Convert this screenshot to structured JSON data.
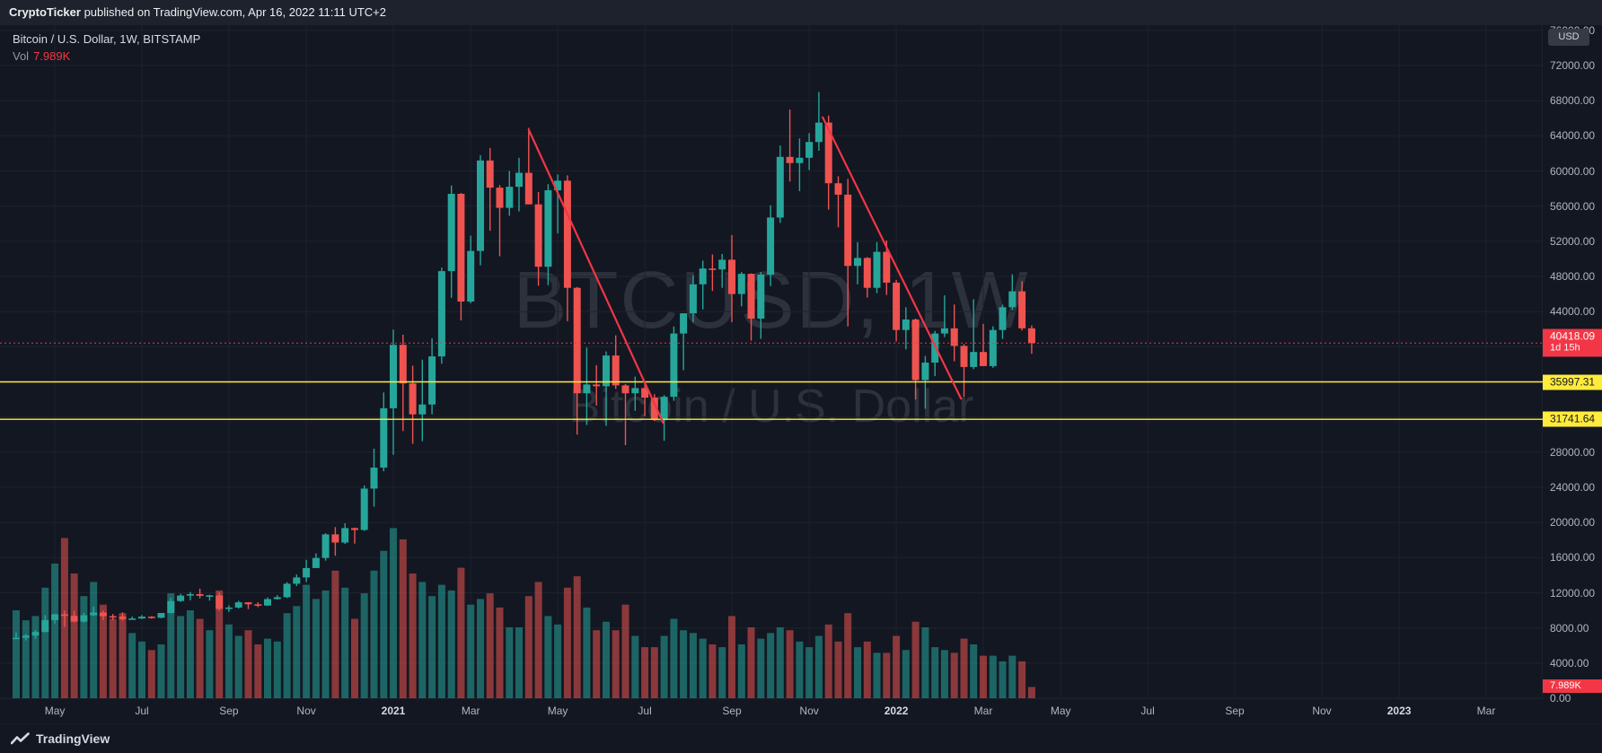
{
  "attribution": {
    "author": "CryptoTicker",
    "text": " published on TradingView.com, Apr 16, 2022 11:11 UTC+2"
  },
  "legend": {
    "symbol": "Bitcoin / U.S. Dollar",
    "interval": "1W",
    "exchange": "BITSTAMP",
    "title_text": "Bitcoin / U.S. Dollar, 1W, BITSTAMP",
    "vol_label": "Vol",
    "vol_value": "7.989K"
  },
  "watermark": {
    "line1": "BTCUSD, 1W",
    "line2": "Bitcoin / U.S. Dollar"
  },
  "price_scale": {
    "unit_label": "USD",
    "ticks": [
      {
        "label": "76000.00",
        "value": 76000
      },
      {
        "label": "72000.00",
        "value": 72000
      },
      {
        "label": "68000.00",
        "value": 68000
      },
      {
        "label": "64000.00",
        "value": 64000
      },
      {
        "label": "60000.00",
        "value": 60000
      },
      {
        "label": "56000.00",
        "value": 56000
      },
      {
        "label": "52000.00",
        "value": 52000
      },
      {
        "label": "48000.00",
        "value": 48000
      },
      {
        "label": "44000.00",
        "value": 44000
      },
      {
        "label": "40000.00",
        "value": 40000
      },
      {
        "label": "36000.00",
        "value": 36000
      },
      {
        "label": "32000.00",
        "value": 32000
      },
      {
        "label": "28000.00",
        "value": 28000
      },
      {
        "label": "24000.00",
        "value": 24000
      },
      {
        "label": "20000.00",
        "value": 20000
      },
      {
        "label": "16000.00",
        "value": 16000
      },
      {
        "label": "12000.00",
        "value": 12000
      },
      {
        "label": "8000.00",
        "value": 8000
      },
      {
        "label": "4000.00",
        "value": 4000
      },
      {
        "label": "0.00",
        "value": 0
      }
    ]
  },
  "time_scale": {
    "ticks": [
      {
        "label": "May",
        "week": 4,
        "year": false
      },
      {
        "label": "Jul",
        "week": 13,
        "year": false
      },
      {
        "label": "Sep",
        "week": 22,
        "year": false
      },
      {
        "label": "Nov",
        "week": 30,
        "year": false
      },
      {
        "label": "2021",
        "week": 39,
        "year": true
      },
      {
        "label": "Mar",
        "week": 47,
        "year": false
      },
      {
        "label": "May",
        "week": 56,
        "year": false
      },
      {
        "label": "Jul",
        "week": 65,
        "year": false
      },
      {
        "label": "Sep",
        "week": 74,
        "year": false
      },
      {
        "label": "Nov",
        "week": 82,
        "year": false
      },
      {
        "label": "2022",
        "week": 91,
        "year": true
      },
      {
        "label": "Mar",
        "week": 100,
        "year": false
      },
      {
        "label": "May",
        "week": 108,
        "year": false
      },
      {
        "label": "Jul",
        "week": 117,
        "year": false
      },
      {
        "label": "Sep",
        "week": 126,
        "year": false
      },
      {
        "label": "Nov",
        "week": 135,
        "year": false
      },
      {
        "label": "2023",
        "week": 143,
        "year": true
      },
      {
        "label": "Mar",
        "week": 152,
        "year": false
      }
    ]
  },
  "badges": {
    "current_price": {
      "label": "40418.09",
      "countdown": "1d 15h"
    },
    "levels": [
      {
        "label": "35997.31"
      },
      {
        "label": "31741.64"
      }
    ],
    "volume": {
      "label": "7.989K"
    }
  },
  "footer": {
    "brand": "TradingView"
  },
  "chart_data": {
    "type": "candlestick",
    "symbol": "BTCUSD",
    "name": "Bitcoin / U.S. Dollar",
    "exchange": "BITSTAMP",
    "interval": "1W",
    "currency": "USD",
    "current_price": 40418.09,
    "bar_countdown": "1d 15h",
    "current_volume_k": 7.989,
    "price_axis": {
      "min": 0,
      "max": 76600,
      "tick_step": 4000
    },
    "time_axis": {
      "first_bar": "2020-04-06",
      "last_bar": "2022-04-11",
      "visible_end": "2023-03-06",
      "bar_interval": "1 week"
    },
    "colors": {
      "up": "#26a69a",
      "down": "#ef5350",
      "background": "#131722",
      "grid": "#1e222d",
      "axis_text": "#b2b5be",
      "level_line": "#ffeb3b",
      "current_line": "#f23645",
      "trendline": "#f23645"
    },
    "current_price_line": {
      "price": 40418.09,
      "color": "#f23645",
      "style": "dotted"
    },
    "horizontal_levels": [
      {
        "price": 35997.31,
        "color": "#ffeb3b"
      },
      {
        "price": 31741.64,
        "color": "#ffeb3b"
      }
    ],
    "trendlines": [
      {
        "from_week": 53,
        "from_price": 64700,
        "to_week": 66.9,
        "to_price": 31350,
        "color": "#f23645"
      },
      {
        "from_week": 83.4,
        "from_price": 66100,
        "to_week": 97.7,
        "to_price": 34100,
        "color": "#f23645"
      }
    ],
    "candles": {
      "columns": [
        "week_start",
        "open",
        "high",
        "low",
        "close",
        "volume_k"
      ],
      "rows": [
        [
          "2020-04-06",
          6800,
          7480,
          6750,
          6880,
          62
        ],
        [
          "2020-04-13",
          6880,
          7300,
          6580,
          7130,
          55
        ],
        [
          "2020-04-20",
          7130,
          7775,
          6770,
          7550,
          58
        ],
        [
          "2020-04-27",
          7550,
          9460,
          7500,
          8900,
          78
        ],
        [
          "2020-05-04",
          8900,
          9585,
          8520,
          9550,
          95
        ],
        [
          "2020-05-11",
          9550,
          9960,
          8115,
          9380,
          113
        ],
        [
          "2020-05-18",
          9380,
          9950,
          8640,
          8720,
          88
        ],
        [
          "2020-05-25",
          8720,
          9700,
          8630,
          9450,
          72
        ],
        [
          "2020-06-01",
          9450,
          10430,
          9330,
          9750,
          82
        ],
        [
          "2020-06-08",
          9750,
          9990,
          8900,
          9340,
          66
        ],
        [
          "2020-06-15",
          9340,
          9590,
          8910,
          9300,
          56
        ],
        [
          "2020-06-22",
          9300,
          9780,
          8830,
          9010,
          60
        ],
        [
          "2020-06-29",
          9010,
          9290,
          8930,
          9080,
          46
        ],
        [
          "2020-07-06",
          9080,
          9470,
          9020,
          9280,
          40
        ],
        [
          "2020-07-13",
          9280,
          9340,
          9050,
          9160,
          34
        ],
        [
          "2020-07-20",
          9160,
          9700,
          9100,
          9700,
          38
        ],
        [
          "2020-07-27",
          9700,
          11420,
          9660,
          11060,
          74
        ],
        [
          "2020-08-03",
          11060,
          11900,
          10960,
          11680,
          58
        ],
        [
          "2020-08-10",
          11680,
          12090,
          11150,
          11850,
          62
        ],
        [
          "2020-08-17",
          11850,
          12470,
          11380,
          11650,
          56
        ],
        [
          "2020-08-24",
          11650,
          11780,
          11110,
          11700,
          48
        ],
        [
          "2020-08-31",
          11700,
          12050,
          9960,
          10170,
          76
        ],
        [
          "2020-09-07",
          10170,
          10580,
          9820,
          10330,
          52
        ],
        [
          "2020-09-14",
          10330,
          11090,
          10200,
          10920,
          44
        ],
        [
          "2020-09-21",
          10920,
          10950,
          10140,
          10690,
          48
        ],
        [
          "2020-09-28",
          10690,
          10930,
          10370,
          10550,
          38
        ],
        [
          "2020-10-05",
          10550,
          11480,
          10510,
          11290,
          42
        ],
        [
          "2020-10-12",
          11290,
          11730,
          11220,
          11500,
          40
        ],
        [
          "2020-10-19",
          11500,
          13220,
          11400,
          13030,
          60
        ],
        [
          "2020-10-26",
          13030,
          14080,
          12770,
          13750,
          65
        ],
        [
          "2020-11-02",
          13750,
          15750,
          13220,
          14820,
          80
        ],
        [
          "2020-11-09",
          14820,
          16480,
          14810,
          15960,
          70
        ],
        [
          "2020-11-16",
          15960,
          18770,
          15660,
          18650,
          76
        ],
        [
          "2020-11-23",
          18650,
          19480,
          16220,
          17720,
          90
        ],
        [
          "2020-11-30",
          17720,
          19900,
          17570,
          19360,
          78
        ],
        [
          "2020-12-07",
          19360,
          19420,
          17600,
          19150,
          56
        ],
        [
          "2020-12-14",
          19150,
          24200,
          19050,
          23860,
          74
        ],
        [
          "2020-12-21",
          23860,
          28400,
          21800,
          26250,
          90
        ],
        [
          "2020-12-28",
          26250,
          34800,
          25830,
          33000,
          104
        ],
        [
          "2021-01-04",
          33000,
          41950,
          27700,
          40220,
          120
        ],
        [
          "2021-01-11",
          40220,
          41370,
          30400,
          35830,
          112
        ],
        [
          "2021-01-18",
          35830,
          37850,
          28950,
          32300,
          88
        ],
        [
          "2021-01-25",
          32300,
          38530,
          29250,
          33430,
          82
        ],
        [
          "2021-02-01",
          33430,
          40950,
          32300,
          38900,
          72
        ],
        [
          "2021-02-08",
          38900,
          49000,
          38060,
          48600,
          80
        ],
        [
          "2021-02-15",
          48600,
          58350,
          45570,
          57400,
          76
        ],
        [
          "2021-02-22",
          57400,
          57500,
          43000,
          45140,
          92
        ],
        [
          "2021-03-01",
          45140,
          52640,
          44950,
          50900,
          66
        ],
        [
          "2021-03-08",
          50900,
          61800,
          49270,
          61200,
          70
        ],
        [
          "2021-03-15",
          61200,
          62600,
          53200,
          58100,
          74
        ],
        [
          "2021-03-22",
          58100,
          58400,
          50300,
          55800,
          64
        ],
        [
          "2021-03-29",
          55800,
          60000,
          54900,
          58200,
          50
        ],
        [
          "2021-04-05",
          58200,
          61500,
          55400,
          59800,
          50
        ],
        [
          "2021-04-12",
          59800,
          64900,
          59600,
          56200,
          72
        ],
        [
          "2021-04-19",
          56200,
          57600,
          46950,
          49100,
          82
        ],
        [
          "2021-04-26",
          49100,
          58500,
          47000,
          57800,
          58
        ],
        [
          "2021-05-03",
          57800,
          59600,
          52900,
          58900,
          52
        ],
        [
          "2021-05-10",
          58900,
          59500,
          42900,
          46700,
          78
        ],
        [
          "2021-05-17",
          46700,
          46800,
          30000,
          34700,
          86
        ],
        [
          "2021-05-24",
          34700,
          39900,
          31100,
          35700,
          64
        ],
        [
          "2021-05-31",
          35700,
          37900,
          33300,
          35500,
          48
        ],
        [
          "2021-06-07",
          35500,
          39470,
          31000,
          39000,
          54
        ],
        [
          "2021-06-14",
          39000,
          41300,
          35200,
          35600,
          48
        ],
        [
          "2021-06-21",
          35600,
          35750,
          28800,
          34700,
          66
        ],
        [
          "2021-06-28",
          34700,
          36600,
          32700,
          35300,
          44
        ],
        [
          "2021-07-05",
          35300,
          35950,
          32100,
          34200,
          36
        ],
        [
          "2021-07-12",
          34200,
          34600,
          31550,
          31800,
          36
        ],
        [
          "2021-07-19",
          31800,
          34500,
          29300,
          34300,
          44
        ],
        [
          "2021-07-26",
          34300,
          42300,
          33850,
          41500,
          56
        ],
        [
          "2021-08-02",
          41500,
          43800,
          37330,
          43800,
          48
        ],
        [
          "2021-08-09",
          43800,
          48150,
          42780,
          47100,
          46
        ],
        [
          "2021-08-16",
          47100,
          49800,
          44250,
          48900,
          42
        ],
        [
          "2021-08-23",
          48900,
          50500,
          46350,
          48800,
          38
        ],
        [
          "2021-08-30",
          48800,
          50550,
          46700,
          49900,
          36
        ],
        [
          "2021-09-06",
          49900,
          52700,
          42800,
          46000,
          58
        ],
        [
          "2021-09-13",
          46000,
          48500,
          44600,
          48300,
          38
        ],
        [
          "2021-09-20",
          48300,
          48350,
          40700,
          43200,
          50
        ],
        [
          "2021-09-27",
          43200,
          48500,
          40900,
          48200,
          42
        ],
        [
          "2021-10-04",
          48200,
          56100,
          46900,
          54700,
          46
        ],
        [
          "2021-10-11",
          54700,
          62900,
          54100,
          61600,
          50
        ],
        [
          "2021-10-18",
          61600,
          67000,
          58800,
          60900,
          48
        ],
        [
          "2021-10-25",
          60900,
          63700,
          57700,
          61500,
          40
        ],
        [
          "2021-11-01",
          61500,
          64300,
          60100,
          63300,
          36
        ],
        [
          "2021-11-08",
          63300,
          69000,
          62300,
          65500,
          44
        ],
        [
          "2021-11-15",
          65500,
          66300,
          55600,
          58600,
          52
        ],
        [
          "2021-11-22",
          58600,
          59400,
          53600,
          57300,
          40
        ],
        [
          "2021-11-29",
          57300,
          59100,
          42300,
          49200,
          60
        ],
        [
          "2021-12-06",
          49200,
          51900,
          47100,
          50100,
          36
        ],
        [
          "2021-12-13",
          50100,
          50200,
          45600,
          46700,
          40
        ],
        [
          "2021-12-20",
          46700,
          51900,
          46100,
          50800,
          32
        ],
        [
          "2021-12-27",
          50800,
          52100,
          45900,
          47300,
          32
        ],
        [
          "2022-01-03",
          47300,
          47600,
          40600,
          41900,
          44
        ],
        [
          "2022-01-10",
          41900,
          44500,
          39700,
          43100,
          34
        ],
        [
          "2022-01-17",
          43100,
          43200,
          34000,
          36200,
          54
        ],
        [
          "2022-01-24",
          36200,
          38950,
          32950,
          38200,
          50
        ],
        [
          "2022-01-31",
          38200,
          41800,
          36650,
          41500,
          36
        ],
        [
          "2022-02-07",
          41500,
          45850,
          41100,
          42100,
          34
        ],
        [
          "2022-02-14",
          42100,
          44800,
          38350,
          40100,
          32
        ],
        [
          "2022-02-21",
          40100,
          40300,
          34300,
          37700,
          42
        ],
        [
          "2022-02-28",
          37700,
          45400,
          37450,
          39400,
          38
        ],
        [
          "2022-03-07",
          39400,
          42600,
          38220,
          37800,
          30
        ],
        [
          "2022-03-14",
          37800,
          42320,
          37600,
          41900,
          30
        ],
        [
          "2022-03-21",
          41900,
          44780,
          40890,
          44500,
          26
        ],
        [
          "2022-03-28",
          44500,
          48240,
          44200,
          46300,
          30
        ],
        [
          "2022-04-04",
          46300,
          47450,
          41850,
          42100,
          26
        ],
        [
          "2022-04-11",
          42100,
          42420,
          39200,
          40418.09,
          7.989
        ]
      ]
    }
  }
}
